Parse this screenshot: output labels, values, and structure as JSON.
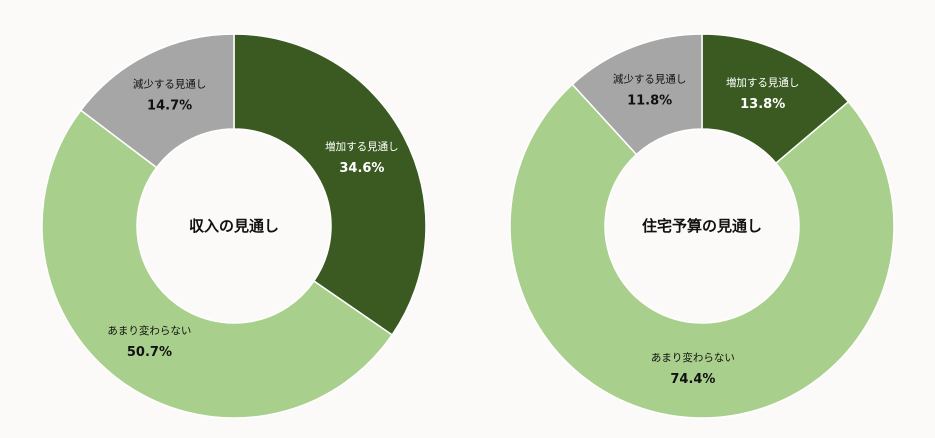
{
  "colors": {
    "increase": "#3a5a22",
    "same": "#a8d08c",
    "decrease": "#a6a6a6",
    "background": "#fbfaf9"
  },
  "chart_data": [
    {
      "type": "pie",
      "title": "収入の見通し",
      "slices": [
        {
          "label": "増加する見通し",
          "value_text": "34.6%",
          "value": 34.6,
          "color": "#3a5a22",
          "text_color": "#ffffff"
        },
        {
          "label": "あまり変わらない",
          "value_text": "50.7%",
          "value": 50.7,
          "color": "#a8d08c",
          "text_color": "#111111"
        },
        {
          "label": "減少する見通し",
          "value_text": "14.7%",
          "value": 14.7,
          "color": "#a6a6a6",
          "text_color": "#111111"
        }
      ]
    },
    {
      "type": "pie",
      "title": "住宅予算の見通し",
      "slices": [
        {
          "label": "増加する見通し",
          "value_text": "13.8%",
          "value": 13.8,
          "color": "#3a5a22",
          "text_color": "#ffffff"
        },
        {
          "label": "あまり変わらない",
          "value_text": "74.4%",
          "value": 74.4,
          "color": "#a8d08c",
          "text_color": "#111111"
        },
        {
          "label": "減少する見通し",
          "value_text": "11.8%",
          "value": 11.8,
          "color": "#a6a6a6",
          "text_color": "#111111"
        }
      ]
    }
  ]
}
